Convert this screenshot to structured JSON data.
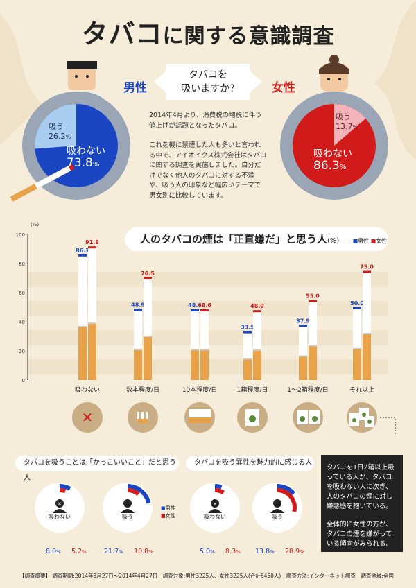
{
  "title": {
    "highlight": "タバコ",
    "rest": "に関する意識調査"
  },
  "question": {
    "line1": "タバコを",
    "line2": "吸いますか?"
  },
  "male": {
    "label": "男性",
    "smoke_label": "吸う",
    "smoke_pct": "26.2",
    "nonsmoke_label": "吸わない",
    "nonsmoke_pct": "73.8",
    "unit": "%",
    "smoke_value": 26.2
  },
  "female": {
    "label": "女性",
    "smoke_label": "吸う",
    "smoke_pct": "13.7",
    "nonsmoke_label": "吸わない",
    "nonsmoke_pct": "86.3",
    "unit": "%",
    "smoke_value": 13.7
  },
  "intro": {
    "p1": "2014年4月より、消費税の増税に伴う値上げが話題となったタバコ。",
    "p2": "これを機に禁煙した人も多いと言われる中で、アイオイクス株式会社はタバコに関する調査を実施しました。自分だけでなく他人のタバコに対する不満や、吸う人の印象など幅広いテーマで男女別に比較しています。"
  },
  "chart_title": {
    "text": "人のタバコの煙は「正直嫌だ」と思う人",
    "unit": "(%)",
    "legend_male": "男性",
    "legend_female": "女性"
  },
  "chart_data": {
    "type": "bar",
    "ylabel": "(%)",
    "ylim": [
      0,
      100
    ],
    "yticks": [
      "0",
      "20",
      "40",
      "60",
      "80",
      "100"
    ],
    "categories": [
      "吸わない",
      "数本程度/日",
      "10本程度/日",
      "1箱程度/日",
      "1〜2箱程度/日",
      "それ以上"
    ],
    "series": [
      {
        "name": "男性",
        "values": [
          86.3,
          48.9,
          48.6,
          33.5,
          37.9,
          50.0
        ],
        "labels": [
          "86.3",
          "48.9",
          "48.6",
          "33.5",
          "37.9",
          "50.0"
        ],
        "color": "#1a46c4"
      },
      {
        "name": "女性",
        "values": [
          91.8,
          70.5,
          48.6,
          48.0,
          55.0,
          75.0
        ],
        "labels": [
          "91.8",
          "70.5",
          "48.6",
          "48.0",
          "55.0",
          "75.0"
        ],
        "color": "#d11b1b"
      }
    ]
  },
  "section2": {
    "title": "タバコを吸うことは「かっこいいこと」だと思う人",
    "nonsmoke_label": "吸わない",
    "smoke_label": "吸う",
    "nonsmoke_male": "8.0",
    "nonsmoke_female": "5.2",
    "smoke_male": "21.7",
    "smoke_female": "10.8",
    "unit": "%",
    "values": {
      "nonsmoke_male": 8.0,
      "nonsmoke_female": 5.2,
      "smoke_male": 21.7,
      "smoke_female": 10.8
    }
  },
  "section3": {
    "title": "タバコを吸う異性を魅力的に感じる人",
    "nonsmoke_label": "吸わない",
    "smoke_label": "吸う",
    "nonsmoke_male": "5.0",
    "nonsmoke_female": "8.3",
    "smoke_male": "13.8",
    "smoke_female": "28.9",
    "unit": "%",
    "values": {
      "nonsmoke_male": 5.0,
      "nonsmoke_female": 8.3,
      "smoke_male": 13.8,
      "smoke_female": 28.9
    }
  },
  "donut_legend": {
    "male": "男性",
    "female": "女性"
  },
  "note": {
    "p1": "タバコを1日2箱以上吸っている人が、タバコを吸わない人に次ぎ、人のタバコの煙に対し嫌悪感を抱いている。",
    "p2": "全体的に女性の方が、タバコの煙を嫌がっている傾向がみられる。"
  },
  "footer": "【調査概要】 調査期間:2014年3月27日〜2014年4月27日　調査対象:男性3225人、女性3225人(合計6450人)　調査方法:インターネット調査　調査地域:全国",
  "colors": {
    "male": "#1a46c4",
    "female": "#d11b1b",
    "male_light": "#a9cdee",
    "female_light": "#f3b3b8",
    "background": "#f5ecd9",
    "tobacco": "#e8a24a"
  }
}
